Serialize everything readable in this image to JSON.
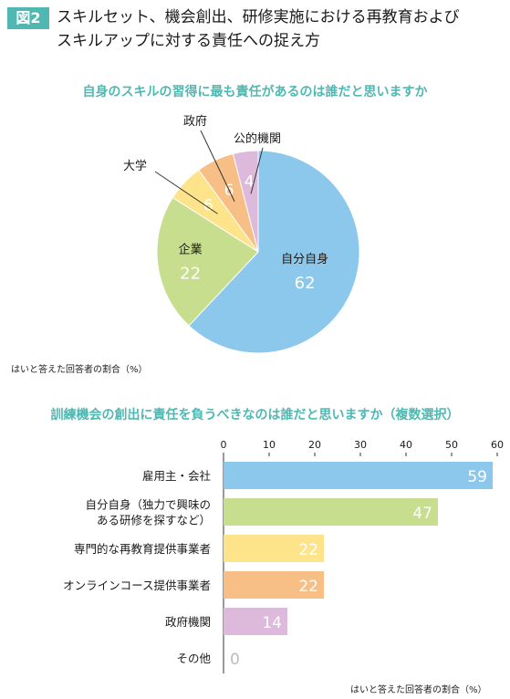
{
  "header": {
    "figure_label": "図2",
    "title_line1": "スキルセット、機会創出、研修実施における再教育および",
    "title_line2": "スキルアップに対する責任への捉え方"
  },
  "chart_data": [
    {
      "type": "pie",
      "title": "自身のスキルの習得に最も責任があるのは誰だと思いますか",
      "note": "はいと答えた回答者の割合（%）",
      "slices": [
        {
          "label": "自分自身",
          "value": 62,
          "color": "#8cc7ec"
        },
        {
          "label": "企業",
          "value": 22,
          "color": "#c6de8d"
        },
        {
          "label": "大学",
          "value": 6,
          "color": "#fde38a"
        },
        {
          "label": "政府",
          "value": 6,
          "color": "#f7bf86"
        },
        {
          "label": "公的機関",
          "value": 4,
          "color": "#ddbadb"
        }
      ]
    },
    {
      "type": "bar",
      "orientation": "horizontal",
      "title": "訓練機会の創出に責任を負うべきなのは誰だと思いますか（複数選択）",
      "note": "はいと答えた回答者の割合（%）",
      "xlim": [
        0,
        60
      ],
      "xticks": [
        "0",
        "10",
        "20",
        "30",
        "40",
        "50",
        "60"
      ],
      "categories": [
        [
          "雇用主・会社"
        ],
        [
          "自分自身（独力で興味の",
          "ある研修を探すなど）"
        ],
        [
          "専門的な再教育提供事業者"
        ],
        [
          "オンラインコース提供事業者"
        ],
        [
          "政府機関"
        ],
        [
          "その他"
        ]
      ],
      "values": [
        59,
        47,
        22,
        22,
        14,
        0
      ],
      "colors": [
        "#8cc7ec",
        "#c6de8d",
        "#fde38a",
        "#f7bf86",
        "#ddbadb",
        "#cccccc"
      ]
    }
  ]
}
